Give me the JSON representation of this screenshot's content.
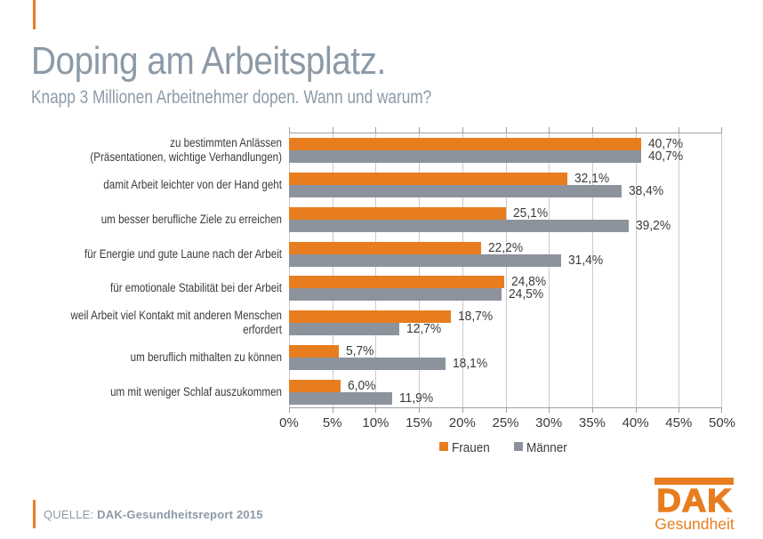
{
  "theme": {
    "orange": "#E87D1F",
    "bar_gray": "#8D939C",
    "bluegray": "#8C9AA7",
    "grid": "#C9CACB",
    "axis": "#9DA0A3",
    "text_dark": "#3B3B3B"
  },
  "header": {
    "title": "Doping am Arbeitsplatz.",
    "subtitle": "Knapp 3 Millionen Arbeitnehmer dopen. Wann und warum?"
  },
  "chart_data": {
    "type": "bar",
    "orientation": "horizontal",
    "title": "Doping am Arbeitsplatz.",
    "xlabel": "",
    "ylabel": "",
    "xlim": [
      0,
      50
    ],
    "grid": true,
    "legend_position": "bottom",
    "x_ticks": [
      "0%",
      "5%",
      "10%",
      "15%",
      "20%",
      "25%",
      "30%",
      "35%",
      "40%",
      "45%",
      "50%"
    ],
    "categories": [
      "zu bestimmten  Anlässen\n(Präsentationen, wichtige Verhandlungen)",
      "damit Arbeit leichter von der Hand geht",
      "um besser berufliche Ziele zu erreichen",
      "für Energie und gute Laune nach der Arbeit",
      "für emotionale Stabilität bei der Arbeit",
      "weil Arbeit viel Kontakt mit anderen Menschen erfordert",
      "um beruflich mithalten zu können",
      "um mit weniger Schlaf auszukommen"
    ],
    "series": [
      {
        "name": "Frauen",
        "color": "#E87D1F",
        "values": [
          40.7,
          32.1,
          25.1,
          22.2,
          24.8,
          18.7,
          5.7,
          6.0
        ],
        "labels": [
          "40,7%",
          "32,1%",
          "25,1%",
          "22,2%",
          "24,8%",
          "18,7%",
          "5,7%",
          "6,0%"
        ]
      },
      {
        "name": "Männer",
        "color": "#8D939C",
        "values": [
          40.7,
          38.4,
          39.2,
          31.4,
          24.5,
          12.7,
          18.1,
          11.9
        ],
        "labels": [
          "40,7%",
          "38,4%",
          "39,2%",
          "31,4%",
          "24,5%",
          "12,7%",
          "18,1%",
          "11,9%"
        ]
      }
    ]
  },
  "footer": {
    "source_prefix": "QUELLE:",
    "source_bold": "DAK-Gesundheitsreport 2015"
  },
  "logo": {
    "brand": "DAK",
    "subbrand": "Gesundheit"
  }
}
